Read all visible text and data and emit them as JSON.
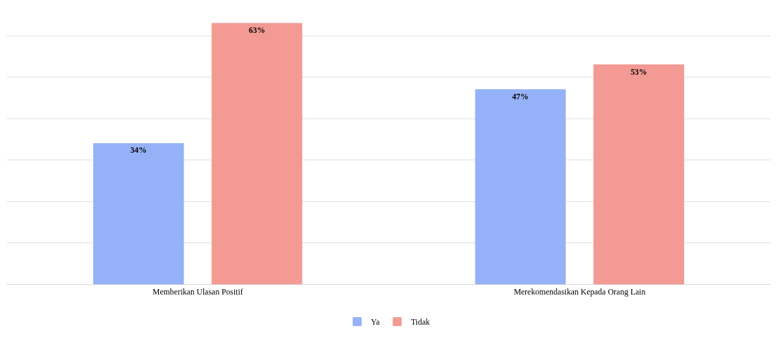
{
  "chart_data": {
    "type": "bar",
    "categories": [
      "Memberikan Ulasan Positif",
      "Merekomendasikan Kepada Orang Lain"
    ],
    "series": [
      {
        "name": "Ya",
        "color": "#95b2f8",
        "values": [
          34,
          47
        ],
        "value_labels": [
          "34%",
          "47%"
        ]
      },
      {
        "name": "Tidak",
        "color": "#f39a94",
        "values": [
          63,
          53
        ],
        "value_labels": [
          "63%",
          "53%"
        ]
      }
    ],
    "grid": "y",
    "legend": "bottom",
    "tick_labels": "x"
  }
}
